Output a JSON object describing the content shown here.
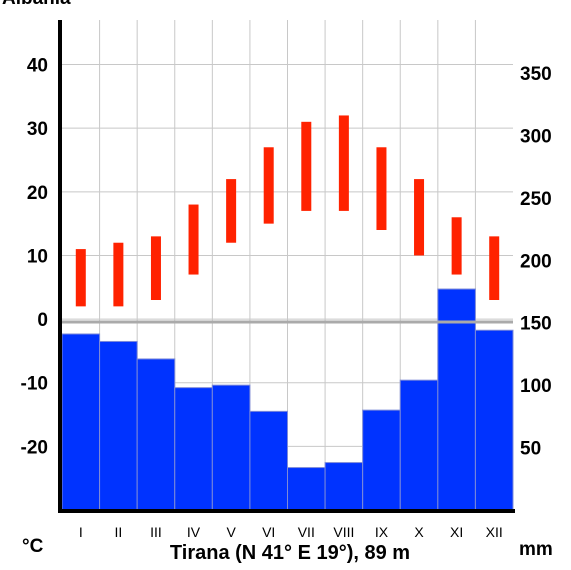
{
  "chart_data": {
    "type": "climate-diagram",
    "title": "Tirana (N 41° E 19°), 89 m",
    "partial_header_text": "Albania",
    "months": [
      "I",
      "II",
      "III",
      "IV",
      "V",
      "VI",
      "VII",
      "VIII",
      "IX",
      "X",
      "XI",
      "XII"
    ],
    "temperature": {
      "unit": "°C",
      "axis_ticks": [
        40,
        30,
        20,
        10,
        0,
        -10,
        -20
      ],
      "range": [
        -30,
        47
      ],
      "min": [
        2,
        2,
        3,
        7,
        12,
        15,
        17,
        17,
        14,
        10,
        7,
        3
      ],
      "max": [
        11,
        12,
        13,
        18,
        22,
        27,
        31,
        32,
        27,
        22,
        16,
        13
      ],
      "color": "#ff2200"
    },
    "precipitation": {
      "unit": "mm",
      "axis_ticks": [
        350,
        300,
        250,
        200,
        150,
        100,
        50
      ],
      "range": [
        0,
        392.5
      ],
      "values": [
        141,
        135,
        121,
        98,
        100,
        79,
        34,
        38,
        80,
        104,
        177,
        144
      ],
      "color": "#0033ff"
    },
    "grid": true
  }
}
